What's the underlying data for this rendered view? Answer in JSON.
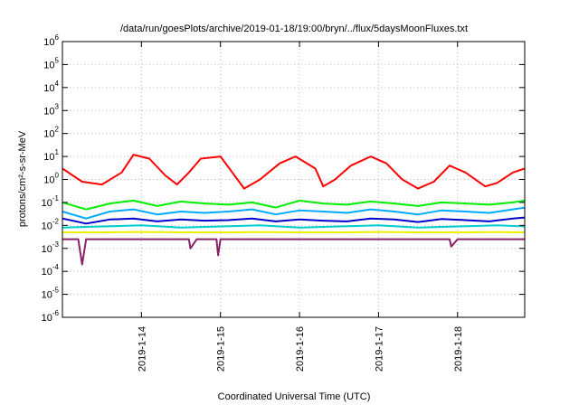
{
  "chart_data": {
    "type": "line",
    "title": "/data/run/goesPlots/archive/2019-01-18/19:00/bryn/../flux/5daysMoonFluxes.txt",
    "xlabel": "Coordinated Universal Time (UTC)",
    "ylabel": "protons/cm²-s-sr-MeV",
    "y_scale": "log",
    "ylim": [
      1e-06,
      1000000.0
    ],
    "y_ticks": [
      {
        "value": 1e-06,
        "base": "10",
        "exp": "-6"
      },
      {
        "value": 1e-05,
        "base": "10",
        "exp": "-5"
      },
      {
        "value": 0.0001,
        "base": "10",
        "exp": "-4"
      },
      {
        "value": 0.001,
        "base": "10",
        "exp": "-3"
      },
      {
        "value": 0.01,
        "base": "10",
        "exp": "-2"
      },
      {
        "value": 0.1,
        "base": "10",
        "exp": "-1"
      },
      {
        "value": 1.0,
        "base": "10",
        "exp": "0"
      },
      {
        "value": 10.0,
        "base": "10",
        "exp": "1"
      },
      {
        "value": 100.0,
        "base": "10",
        "exp": "2"
      },
      {
        "value": 1000.0,
        "base": "10",
        "exp": "3"
      },
      {
        "value": 10000.0,
        "base": "10",
        "exp": "4"
      },
      {
        "value": 100000.0,
        "base": "10",
        "exp": "5"
      },
      {
        "value": 1000000.0,
        "base": "10",
        "exp": "6"
      }
    ],
    "xlim_days": [
      13.0,
      18.85
    ],
    "x_ticks": [
      {
        "day": 14,
        "label": "2019-1-14"
      },
      {
        "day": 15,
        "label": "2019-1-15"
      },
      {
        "day": 16,
        "label": "2019-1-16"
      },
      {
        "day": 17,
        "label": "2019-1-17"
      },
      {
        "day": 18,
        "label": "2019-1-18"
      }
    ],
    "grid": true,
    "legend": "none",
    "series": [
      {
        "color": "#ff0000",
        "x": [
          13.0,
          13.25,
          13.5,
          13.75,
          13.9,
          14.1,
          14.3,
          14.45,
          14.6,
          14.75,
          15.0,
          15.15,
          15.3,
          15.5,
          15.75,
          15.95,
          16.2,
          16.3,
          16.45,
          16.65,
          16.9,
          17.1,
          17.3,
          17.5,
          17.7,
          17.9,
          18.1,
          18.35,
          18.5,
          18.7,
          18.85
        ],
        "y": [
          3.0,
          0.8,
          0.6,
          2.0,
          12.0,
          8.0,
          1.5,
          0.6,
          2.0,
          8.0,
          10.0,
          2.0,
          0.4,
          1.0,
          5.0,
          10.0,
          3.0,
          0.5,
          1.0,
          4.0,
          10.0,
          5.0,
          1.0,
          0.4,
          0.8,
          4.0,
          2.0,
          0.5,
          0.7,
          2.0,
          3.0
        ]
      },
      {
        "color": "#00ee00",
        "x": [
          13.0,
          13.3,
          13.6,
          13.9,
          14.2,
          14.5,
          14.8,
          15.1,
          15.4,
          15.7,
          16.0,
          16.3,
          16.6,
          16.9,
          17.2,
          17.5,
          17.8,
          18.1,
          18.4,
          18.7,
          18.85
        ],
        "y": [
          0.1,
          0.05,
          0.09,
          0.12,
          0.07,
          0.11,
          0.09,
          0.08,
          0.1,
          0.06,
          0.12,
          0.09,
          0.08,
          0.11,
          0.09,
          0.07,
          0.1,
          0.09,
          0.08,
          0.1,
          0.12
        ]
      },
      {
        "color": "#00aaff",
        "x": [
          13.0,
          13.3,
          13.6,
          13.9,
          14.2,
          14.5,
          14.8,
          15.1,
          15.4,
          15.7,
          16.0,
          16.3,
          16.6,
          16.9,
          17.2,
          17.5,
          17.8,
          18.1,
          18.4,
          18.7,
          18.85
        ],
        "y": [
          0.04,
          0.02,
          0.04,
          0.05,
          0.03,
          0.04,
          0.035,
          0.04,
          0.05,
          0.03,
          0.045,
          0.04,
          0.035,
          0.05,
          0.04,
          0.03,
          0.045,
          0.04,
          0.035,
          0.05,
          0.06
        ]
      },
      {
        "color": "#0000cc",
        "x": [
          13.0,
          13.3,
          13.6,
          13.9,
          14.2,
          14.5,
          14.8,
          15.1,
          15.4,
          15.7,
          16.0,
          16.3,
          16.6,
          16.9,
          17.2,
          17.5,
          17.8,
          18.1,
          18.4,
          18.7,
          18.85
        ],
        "y": [
          0.02,
          0.012,
          0.018,
          0.02,
          0.015,
          0.018,
          0.016,
          0.017,
          0.02,
          0.015,
          0.018,
          0.016,
          0.015,
          0.02,
          0.018,
          0.014,
          0.019,
          0.017,
          0.015,
          0.02,
          0.022
        ]
      },
      {
        "color": "#00cccc",
        "x": [
          13.0,
          13.5,
          14.0,
          14.5,
          15.0,
          15.5,
          16.0,
          16.5,
          17.0,
          17.5,
          18.0,
          18.5,
          18.85
        ],
        "y": [
          0.008,
          0.009,
          0.01,
          0.008,
          0.009,
          0.01,
          0.008,
          0.009,
          0.01,
          0.008,
          0.009,
          0.01,
          0.009
        ]
      },
      {
        "color": "#eeee00",
        "x": [
          13.0,
          13.5,
          14.0,
          14.5,
          15.0,
          15.5,
          16.0,
          16.5,
          17.0,
          17.5,
          18.0,
          18.5,
          18.85
        ],
        "y": [
          0.005,
          0.005,
          0.0052,
          0.005,
          0.005,
          0.0051,
          0.005,
          0.005,
          0.0052,
          0.005,
          0.005,
          0.0051,
          0.005
        ]
      },
      {
        "color": "#882266",
        "x": [
          13.0,
          13.2,
          13.25,
          13.3,
          13.5,
          14.0,
          14.6,
          14.62,
          14.7,
          14.95,
          14.97,
          15.0,
          15.2,
          15.5,
          16.0,
          16.5,
          17.0,
          17.5,
          17.9,
          17.92,
          18.0,
          18.5,
          18.85
        ],
        "y": [
          0.0025,
          0.0025,
          0.0002,
          0.0025,
          0.0025,
          0.0025,
          0.0025,
          0.001,
          0.0025,
          0.0025,
          0.0005,
          0.0025,
          0.0025,
          0.0025,
          0.0025,
          0.0025,
          0.0025,
          0.0025,
          0.0025,
          0.0012,
          0.0025,
          0.0025,
          0.0025
        ]
      }
    ]
  }
}
